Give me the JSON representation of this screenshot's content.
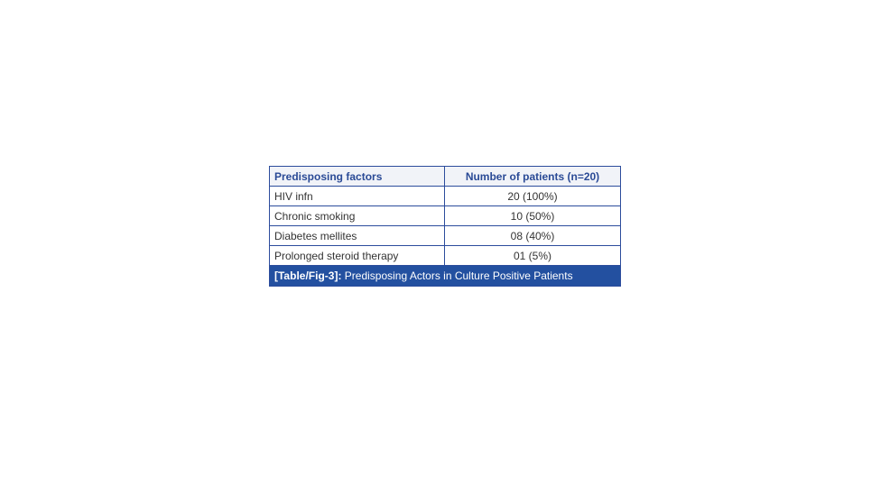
{
  "table": {
    "headers": [
      "Predisposing factors",
      "Number of patients (n=20)"
    ],
    "rows": [
      [
        "HIV infn",
        "20 (100%)"
      ],
      [
        "Chronic smoking",
        "10 (50%)"
      ],
      [
        "Diabetes mellites",
        "08 (40%)"
      ],
      [
        "Prolonged steroid therapy",
        "01 (5%)"
      ]
    ]
  },
  "caption": {
    "label": "[Table/Fig-3]:",
    "text": " Predisposing Actors in Culture Positive Patients"
  },
  "colors": {
    "border": "#2c4c9c",
    "header_text": "#2a4a96",
    "caption_bg": "#2350a0"
  }
}
